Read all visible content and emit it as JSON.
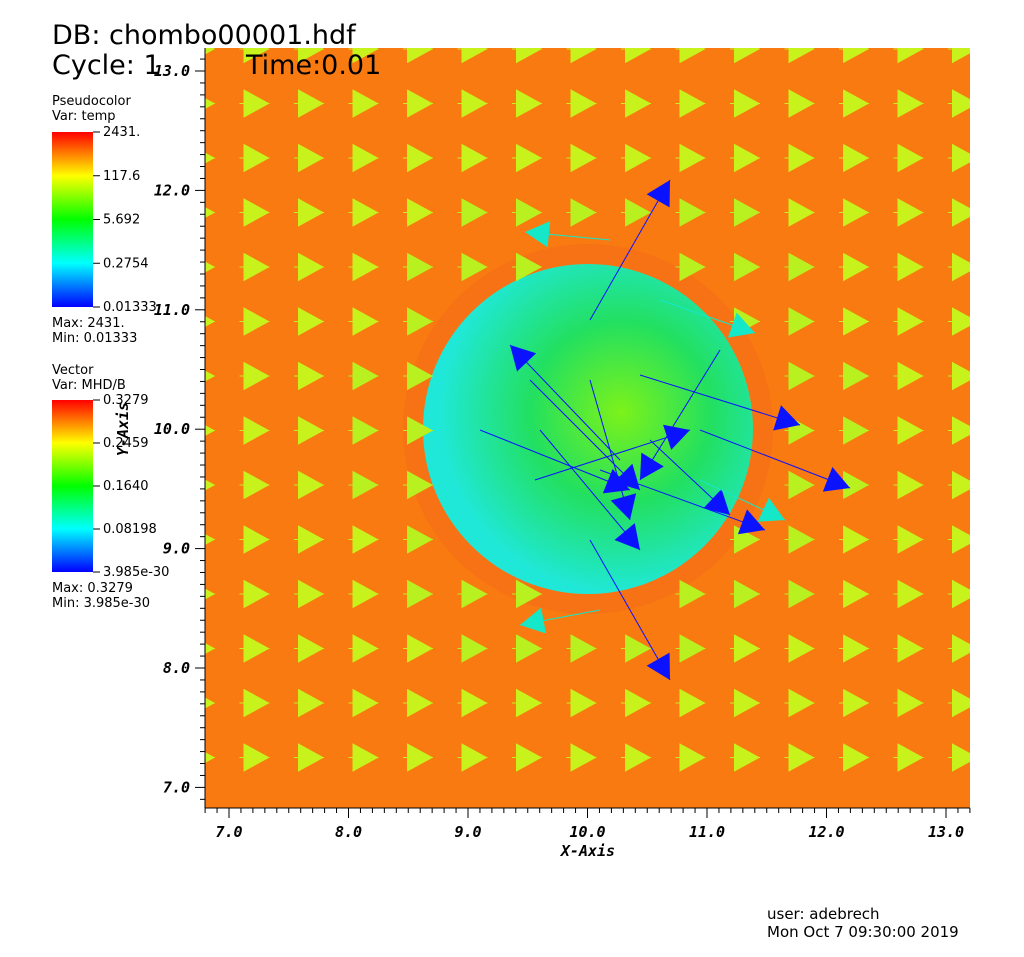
{
  "header": {
    "db": "DB: chombo00001.hdf",
    "cycle": "Cycle: 1",
    "time": "Time:0.01"
  },
  "legends": [
    {
      "title": "Pseudocolor",
      "var": "Var: temp",
      "labels": [
        "2431.",
        "117.6",
        "5.692",
        "0.2754",
        "0.01333"
      ],
      "max": "Max:  2431.",
      "min": "Min:  0.01333"
    },
    {
      "title": "Vector",
      "var": "Var: MHD/B",
      "labels": [
        "0.3279",
        "0.2459",
        "0.1640",
        "0.08198",
        "3.985e-30"
      ],
      "max": "Max:  0.3279",
      "min": "Min:  3.985e-30"
    }
  ],
  "axes": {
    "x_label": "X-Axis",
    "y_label": "Y-Axis",
    "x_ticks": [
      "7.0",
      "8.0",
      "9.0",
      "10.0",
      "11.0",
      "12.0",
      "13.0"
    ],
    "y_ticks": [
      "13.0",
      "12.0",
      "11.0",
      "10.0",
      "9.0",
      "8.0",
      "7.0"
    ]
  },
  "footer": {
    "user": "user: adebrech",
    "date": "Mon Oct  7 09:30:00 2019"
  }
}
